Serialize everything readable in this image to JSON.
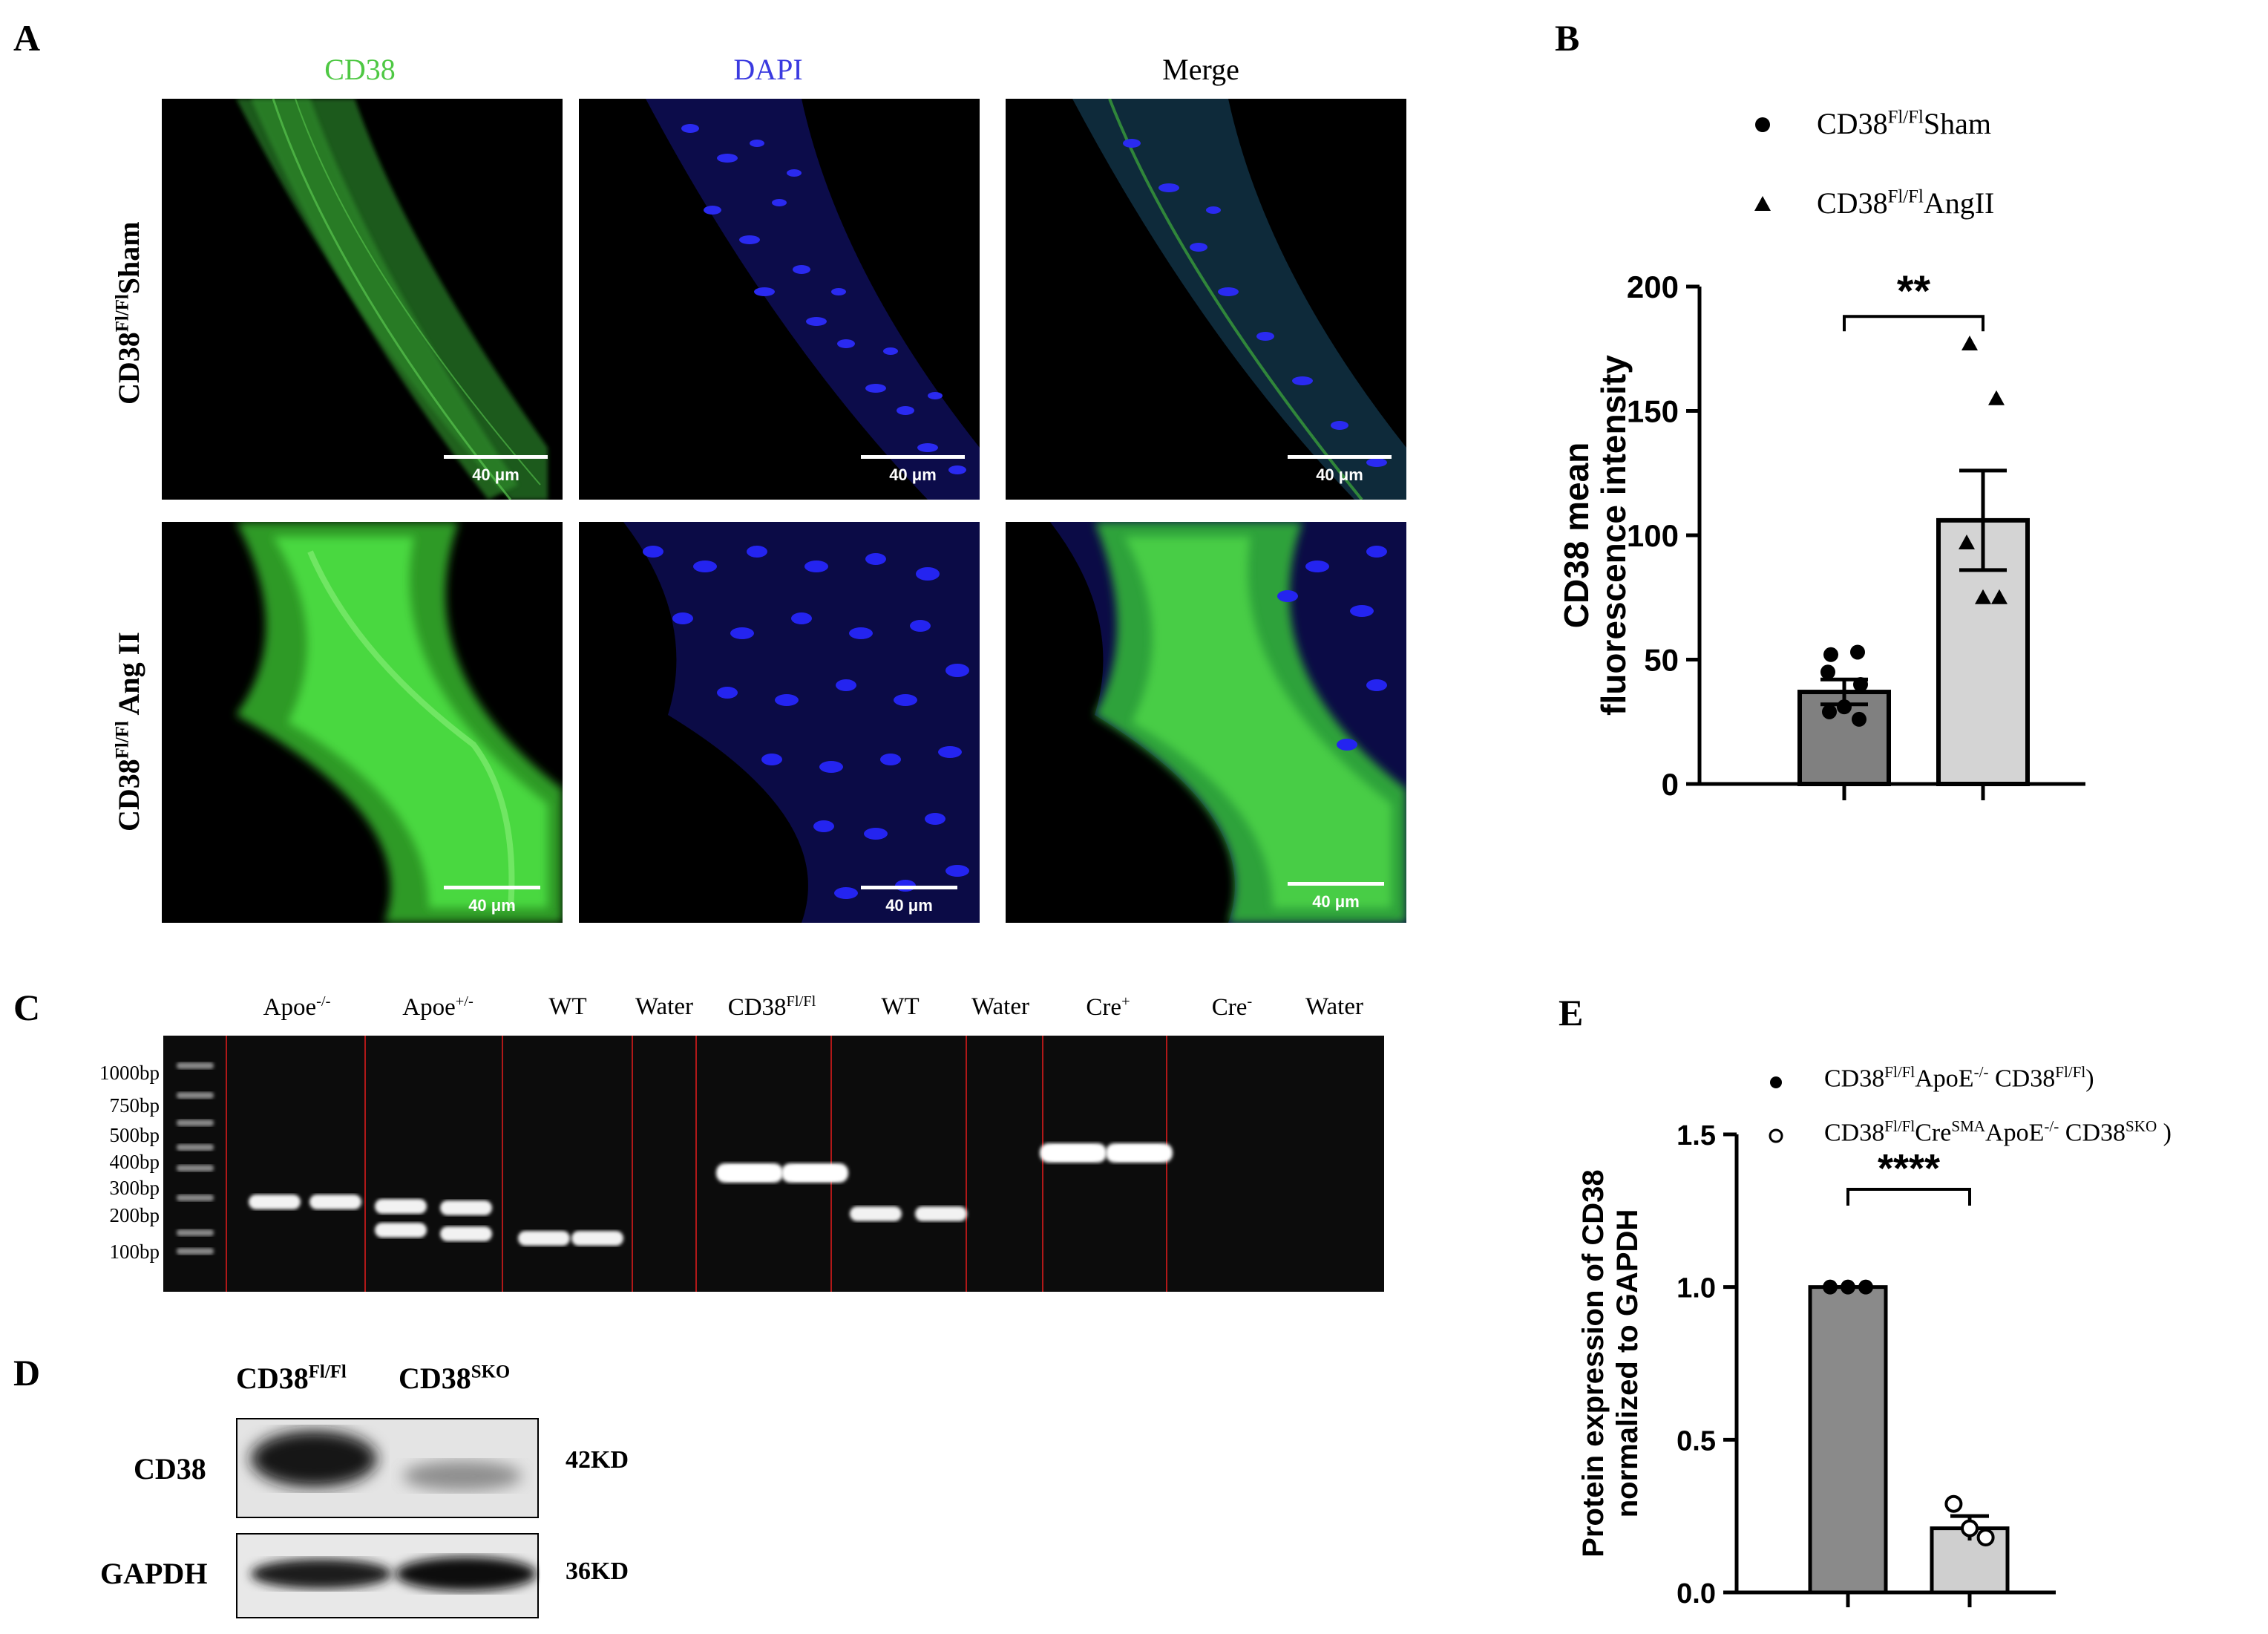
{
  "panel_labels": {
    "A": "A",
    "B": "B",
    "C": "C",
    "D": "D",
    "E": "E"
  },
  "panel_a": {
    "columns": [
      "CD38",
      "DAPI",
      "Merge"
    ],
    "column_colors": [
      "#4ec843",
      "#3a3ae0",
      "#000000"
    ],
    "rows": [
      {
        "base": "CD38",
        "sup": "Fl/Fl",
        "suffix": "Sham"
      },
      {
        "base": "CD38",
        "sup": "Fl/Fl",
        "suffix": " Ang II"
      }
    ],
    "scale_bar": "40 μm"
  },
  "panel_c": {
    "lanes": [
      {
        "base": "Apoe",
        "sup": "-/-"
      },
      {
        "base": "Apoe",
        "sup": "+/-"
      },
      {
        "base": "WT",
        "sup": ""
      },
      {
        "base": "Water",
        "sup": ""
      },
      {
        "base": "CD38",
        "sup": "Fl/Fl"
      },
      {
        "base": "WT",
        "sup": ""
      },
      {
        "base": "Water",
        "sup": ""
      },
      {
        "base": "Cre",
        "sup": "+"
      },
      {
        "base": "Cre",
        "sup": "-"
      },
      {
        "base": "Water",
        "sup": ""
      }
    ],
    "ladder": [
      "1000bp",
      "750bp",
      "500bp",
      "400bp",
      "300bp",
      "200bp",
      "100bp"
    ]
  },
  "panel_d": {
    "columns": [
      {
        "base": "CD38",
        "sup": "Fl/Fl"
      },
      {
        "base": "CD38",
        "sup": "SKO"
      }
    ],
    "rows": [
      {
        "protein": "CD38",
        "size": "42KD"
      },
      {
        "protein": "GAPDH",
        "size": "36KD"
      }
    ]
  },
  "chart_data": [
    {
      "panel": "B",
      "type": "bar",
      "ylabel_lines": [
        "CD38 mean",
        "fluorescence intensity"
      ],
      "ylim": [
        0,
        200
      ],
      "yticks": [
        0,
        50,
        100,
        150,
        200
      ],
      "significance": "**",
      "legend_position": "top",
      "series": [
        {
          "name_base": "CD38",
          "name_sup": "Fl/Fl",
          "name_suffix": "Sham",
          "marker": "circle",
          "mean": 37,
          "sem": 5,
          "points": [
            52,
            53,
            45,
            40,
            31,
            29,
            26
          ]
        },
        {
          "name_base": "CD38",
          "name_sup": "Fl/Fl",
          "name_suffix": "AngII",
          "marker": "triangle",
          "mean": 106,
          "sem": 20,
          "points": [
            177,
            155,
            97,
            75,
            75
          ]
        }
      ]
    },
    {
      "panel": "E",
      "type": "bar",
      "ylabel_lines": [
        "Protein expression of CD38",
        "normalized to GAPDH"
      ],
      "ylim": [
        0,
        1.5
      ],
      "yticks": [
        0.0,
        0.5,
        1.0,
        1.5
      ],
      "significance": "****",
      "legend_position": "top",
      "series": [
        {
          "name": "CD38Fl/FlApoE-/- CD38Fl/Fl)",
          "marker": "filled-circle",
          "mean": 1.0,
          "sem": 0.0,
          "points": [
            1.0,
            1.0,
            1.0
          ]
        },
        {
          "name": "CD38Fl/FlCreSMAApoE-/- CD38SKO )",
          "marker": "open-circle",
          "mean": 0.21,
          "sem": 0.04,
          "points": [
            0.29,
            0.21,
            0.18
          ]
        }
      ]
    }
  ]
}
